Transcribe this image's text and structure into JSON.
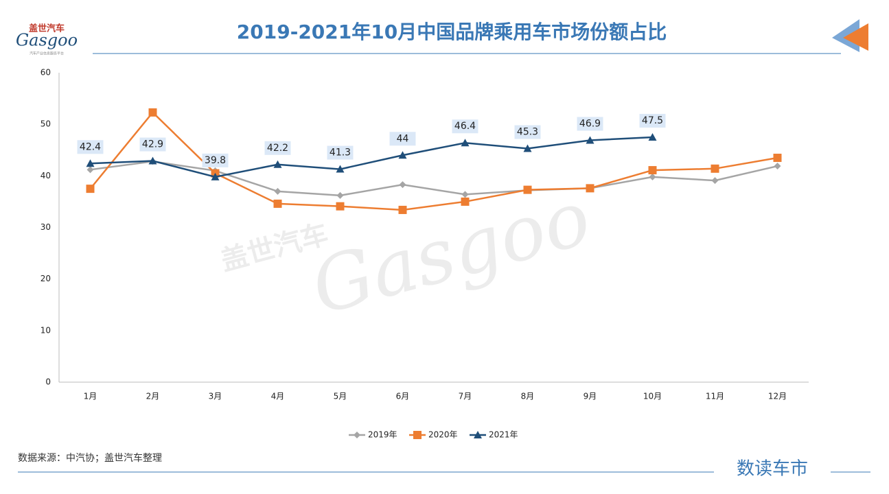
{
  "logo": {
    "cn": "盖世汽车",
    "en": "Gasgoo",
    "tagline": "汽车产业信息服务平台"
  },
  "source": "数据来源：中汽协；盖世汽车整理",
  "brand": "数读车市",
  "chart_data": {
    "type": "line",
    "title": "2019-2021年10月中国品牌乘用车市场份额占比",
    "categories": [
      "1月",
      "2月",
      "3月",
      "4月",
      "5月",
      "6月",
      "7月",
      "8月",
      "9月",
      "10月",
      "11月",
      "12月"
    ],
    "series": [
      {
        "name": "2019年",
        "color": "#a5a5a5",
        "marker": "diamond",
        "values": [
          41.2,
          42.8,
          41.0,
          37.0,
          36.2,
          38.3,
          36.4,
          37.2,
          37.6,
          39.8,
          39.1,
          41.9
        ]
      },
      {
        "name": "2020年",
        "color": "#ed7d31",
        "marker": "square",
        "values": [
          37.5,
          52.3,
          40.5,
          34.6,
          34.1,
          33.4,
          35.0,
          37.3,
          37.6,
          41.1,
          41.4,
          43.5
        ]
      },
      {
        "name": "2021年",
        "color": "#1f4e79",
        "marker": "triangle",
        "labels": true,
        "values": [
          42.4,
          42.9,
          39.8,
          42.2,
          41.3,
          44,
          46.4,
          45.3,
          46.9,
          47.5,
          null,
          null
        ]
      }
    ],
    "ylim": [
      0,
      60
    ],
    "yticks": [
      0,
      10,
      20,
      30,
      40,
      50,
      60
    ],
    "grid": false,
    "legend": "bottom"
  }
}
